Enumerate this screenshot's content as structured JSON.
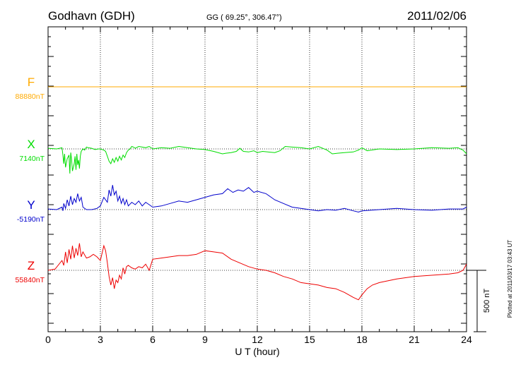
{
  "header": {
    "station": "Godhavn (GDH)",
    "coords": "GG ( 69.25°, 306.47°)",
    "date": "2011/02/06"
  },
  "footer": {
    "plotted": "Plotted at 2011/03/17 03:43 UT"
  },
  "colors": {
    "F": "#ffaa00",
    "X": "#00dd00",
    "Y": "#0000cc",
    "Z": "#ee0000",
    "axis": "#000000"
  },
  "chart_data": {
    "type": "line",
    "xlabel": "U T (hour)",
    "xlim": [
      0,
      24
    ],
    "xticks": [
      "0",
      "3",
      "6",
      "9",
      "12",
      "15",
      "18",
      "21",
      "24"
    ],
    "scale_bar": {
      "label": "500 nT",
      "nT": 500
    },
    "series": [
      {
        "name": "F",
        "baseline_label": "88880nT",
        "x": [
          0,
          24
        ],
        "y": [
          0,
          0
        ]
      },
      {
        "name": "X",
        "baseline_label": "7140nT",
        "x": [
          0,
          0.5,
          0.8,
          0.85,
          0.9,
          0.95,
          1.0,
          1.1,
          1.2,
          1.25,
          1.3,
          1.35,
          1.4,
          1.5,
          1.55,
          1.6,
          1.65,
          1.7,
          1.75,
          1.8,
          1.85,
          1.9,
          2.0,
          2.1,
          2.2,
          2.3,
          2.5,
          2.7,
          2.9,
          3.0,
          3.2,
          3.3,
          3.4,
          3.5,
          3.6,
          3.7,
          3.8,
          3.9,
          4.0,
          4.1,
          4.2,
          4.3,
          4.4,
          4.5,
          4.6,
          4.7,
          4.8,
          4.9,
          5.0,
          5.2,
          5.4,
          5.6,
          5.7,
          5.8,
          6.0,
          6.5,
          7.0,
          7.5,
          8.0,
          8.5,
          9.0,
          9.5,
          10.0,
          10.2,
          10.5,
          10.8,
          11.0,
          11.2,
          11.5,
          11.8,
          12.0,
          12.3,
          12.6,
          13.0,
          13.3,
          13.6,
          14.0,
          14.5,
          15.0,
          15.5,
          16.0,
          16.3,
          16.6,
          17.0,
          17.5,
          17.8,
          18.0,
          18.3,
          19.0,
          20.0,
          21.0,
          22.0,
          23.0,
          23.5,
          23.8,
          24.0
        ],
        "y": [
          5,
          0,
          10,
          -50,
          -120,
          -40,
          -150,
          -80,
          -50,
          -200,
          -30,
          -90,
          -180,
          -120,
          -60,
          -170,
          -40,
          -130,
          -90,
          -160,
          -60,
          -20,
          0,
          -10,
          15,
          10,
          5,
          -5,
          0,
          0,
          -10,
          -20,
          -60,
          -100,
          -120,
          -80,
          -110,
          -70,
          -100,
          -60,
          -90,
          -50,
          -70,
          -30,
          -10,
          0,
          20,
          15,
          5,
          20,
          15,
          10,
          15,
          20,
          0,
          10,
          5,
          20,
          10,
          0,
          -5,
          -20,
          -40,
          -35,
          -30,
          -20,
          5,
          -20,
          -25,
          -15,
          -30,
          -20,
          -25,
          -30,
          -15,
          20,
          15,
          10,
          0,
          20,
          -10,
          -40,
          -35,
          -30,
          -25,
          -10,
          10,
          -15,
          0,
          -5,
          0,
          10,
          5,
          10,
          -10,
          -40
        ]
      },
      {
        "name": "Y",
        "baseline_label": "-5190nT",
        "x": [
          0,
          0.5,
          0.8,
          0.85,
          0.9,
          1.0,
          1.1,
          1.2,
          1.3,
          1.4,
          1.5,
          1.6,
          1.7,
          1.8,
          1.9,
          2.0,
          2.2,
          2.5,
          2.8,
          3.0,
          3.2,
          3.4,
          3.5,
          3.6,
          3.7,
          3.8,
          3.9,
          4.0,
          4.1,
          4.2,
          4.3,
          4.4,
          4.5,
          4.6,
          4.8,
          5.0,
          5.2,
          5.4,
          5.6,
          5.8,
          6.0,
          6.5,
          7.0,
          7.5,
          8.0,
          8.5,
          9.0,
          9.5,
          10.0,
          10.3,
          10.6,
          10.9,
          11.2,
          11.5,
          11.8,
          12.0,
          12.5,
          13.0,
          13.5,
          14.0,
          14.5,
          15.0,
          15.5,
          16.0,
          16.5,
          17.0,
          17.5,
          17.8,
          18.0,
          18.5,
          19.0,
          20.0,
          21.0,
          22.0,
          23.0,
          23.5,
          23.8,
          24.0
        ],
        "y": [
          5,
          0,
          20,
          -10,
          50,
          10,
          80,
          30,
          110,
          40,
          90,
          60,
          130,
          70,
          100,
          20,
          0,
          0,
          10,
          30,
          100,
          60,
          160,
          110,
          200,
          120,
          150,
          70,
          110,
          50,
          90,
          40,
          80,
          30,
          60,
          40,
          70,
          30,
          60,
          40,
          20,
          30,
          50,
          70,
          60,
          80,
          100,
          120,
          130,
          170,
          140,
          160,
          150,
          180,
          140,
          150,
          130,
          80,
          50,
          20,
          10,
          0,
          -10,
          0,
          -5,
          10,
          -10,
          -20,
          -10,
          -5,
          0,
          10,
          0,
          -5,
          5,
          5,
          5,
          20
        ]
      },
      {
        "name": "Z",
        "baseline_label": "55840nT",
        "x": [
          0,
          0.4,
          0.8,
          0.9,
          1.0,
          1.1,
          1.2,
          1.3,
          1.4,
          1.5,
          1.6,
          1.7,
          1.8,
          1.9,
          2.0,
          2.2,
          2.4,
          2.6,
          2.8,
          3.0,
          3.2,
          3.3,
          3.4,
          3.5,
          3.6,
          3.7,
          3.8,
          3.9,
          4.0,
          4.1,
          4.2,
          4.3,
          4.4,
          4.5,
          4.6,
          4.8,
          5.0,
          5.2,
          5.4,
          5.6,
          5.8,
          6.0,
          6.5,
          7.0,
          7.5,
          8.0,
          8.5,
          9.0,
          9.5,
          10.0,
          10.5,
          11.0,
          11.5,
          12.0,
          12.5,
          13.0,
          13.5,
          14.0,
          14.5,
          15.0,
          15.5,
          16.0,
          16.5,
          17.0,
          17.5,
          17.8,
          18.0,
          18.3,
          18.6,
          19.0,
          20.0,
          21.0,
          22.0,
          23.0,
          23.5,
          23.8,
          24.0
        ],
        "y": [
          0,
          10,
          80,
          40,
          150,
          60,
          170,
          90,
          200,
          100,
          180,
          120,
          220,
          110,
          150,
          100,
          110,
          130,
          110,
          80,
          200,
          160,
          60,
          -50,
          -120,
          -60,
          -150,
          -80,
          -100,
          -40,
          -70,
          20,
          -30,
          30,
          40,
          20,
          10,
          30,
          20,
          50,
          0,
          90,
          100,
          110,
          120,
          120,
          130,
          160,
          150,
          140,
          90,
          60,
          30,
          10,
          0,
          -20,
          -50,
          -70,
          -100,
          -110,
          -120,
          -140,
          -150,
          -180,
          -220,
          -240,
          -200,
          -150,
          -120,
          -100,
          -70,
          -50,
          -40,
          -30,
          -20,
          0,
          50
        ]
      }
    ]
  }
}
